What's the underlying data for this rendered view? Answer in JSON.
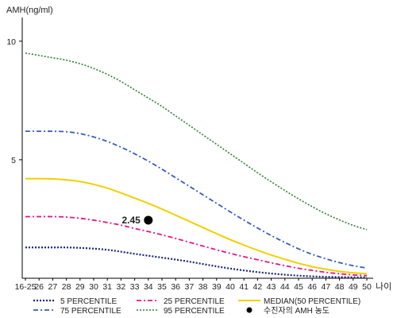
{
  "chart_data": {
    "type": "line",
    "title": "",
    "ylabel": "AMH(ng/ml)",
    "xlabel": "나이",
    "ylim": [
      0,
      11
    ],
    "yticks": [
      5,
      10
    ],
    "x": [
      "16-25",
      "26",
      "27",
      "28",
      "29",
      "30",
      "31",
      "32",
      "33",
      "34",
      "35",
      "36",
      "37",
      "38",
      "39",
      "40",
      "41",
      "42",
      "43",
      "44",
      "45",
      "46",
      "47",
      "48",
      "49",
      "50"
    ],
    "grid": false,
    "legend_position": "bottom",
    "series": [
      {
        "name": "5 PERCENTILE",
        "color": "#1a237e",
        "dash": "2,2",
        "width": 2.2,
        "values": [
          1.3,
          1.3,
          1.3,
          1.3,
          1.28,
          1.25,
          1.2,
          1.12,
          1.03,
          0.95,
          0.87,
          0.79,
          0.7,
          0.6,
          0.5,
          0.41,
          0.33,
          0.26,
          0.2,
          0.15,
          0.11,
          0.08,
          0.06,
          0.05,
          0.04,
          0.04
        ]
      },
      {
        "name": "25 PERCENTILE",
        "color": "#e0168c",
        "dash": "6,3,2,3",
        "width": 1.8,
        "values": [
          2.6,
          2.6,
          2.6,
          2.58,
          2.53,
          2.45,
          2.35,
          2.24,
          2.1,
          1.97,
          1.83,
          1.68,
          1.52,
          1.36,
          1.2,
          1.05,
          0.91,
          0.78,
          0.65,
          0.53,
          0.42,
          0.33,
          0.25,
          0.19,
          0.14,
          0.11
        ]
      },
      {
        "name": "MEDIAN(50 PERCENTILE)",
        "color": "#f4cf00",
        "dash": "",
        "width": 2,
        "values": [
          4.2,
          4.2,
          4.19,
          4.15,
          4.08,
          3.96,
          3.8,
          3.6,
          3.38,
          3.16,
          2.92,
          2.66,
          2.4,
          2.14,
          1.88,
          1.63,
          1.4,
          1.18,
          0.98,
          0.8,
          0.63,
          0.49,
          0.38,
          0.29,
          0.23,
          0.19
        ]
      },
      {
        "name": "75 PERCENTILE",
        "color": "#3a5bbf",
        "dash": "6,3,2,3",
        "width": 1.8,
        "values": [
          6.2,
          6.2,
          6.2,
          6.18,
          6.1,
          5.96,
          5.77,
          5.53,
          5.25,
          4.94,
          4.6,
          4.24,
          3.88,
          3.52,
          3.16,
          2.8,
          2.45,
          2.12,
          1.8,
          1.51,
          1.24,
          1.01,
          0.82,
          0.66,
          0.53,
          0.43
        ]
      },
      {
        "name": "95 PERCENTILE",
        "color": "#2e7d32",
        "dash": "2,2",
        "width": 1.6,
        "values": [
          9.5,
          9.4,
          9.3,
          9.2,
          9.05,
          8.85,
          8.6,
          8.3,
          7.95,
          7.6,
          7.25,
          6.85,
          6.45,
          6.05,
          5.65,
          5.25,
          4.85,
          4.45,
          4.07,
          3.7,
          3.35,
          3.02,
          2.72,
          2.46,
          2.23,
          2.05
        ]
      }
    ],
    "marker": {
      "name": "수진자의 AMH 농도",
      "x": "34",
      "y": 2.45,
      "label": "2.45",
      "color": "#000000"
    }
  }
}
